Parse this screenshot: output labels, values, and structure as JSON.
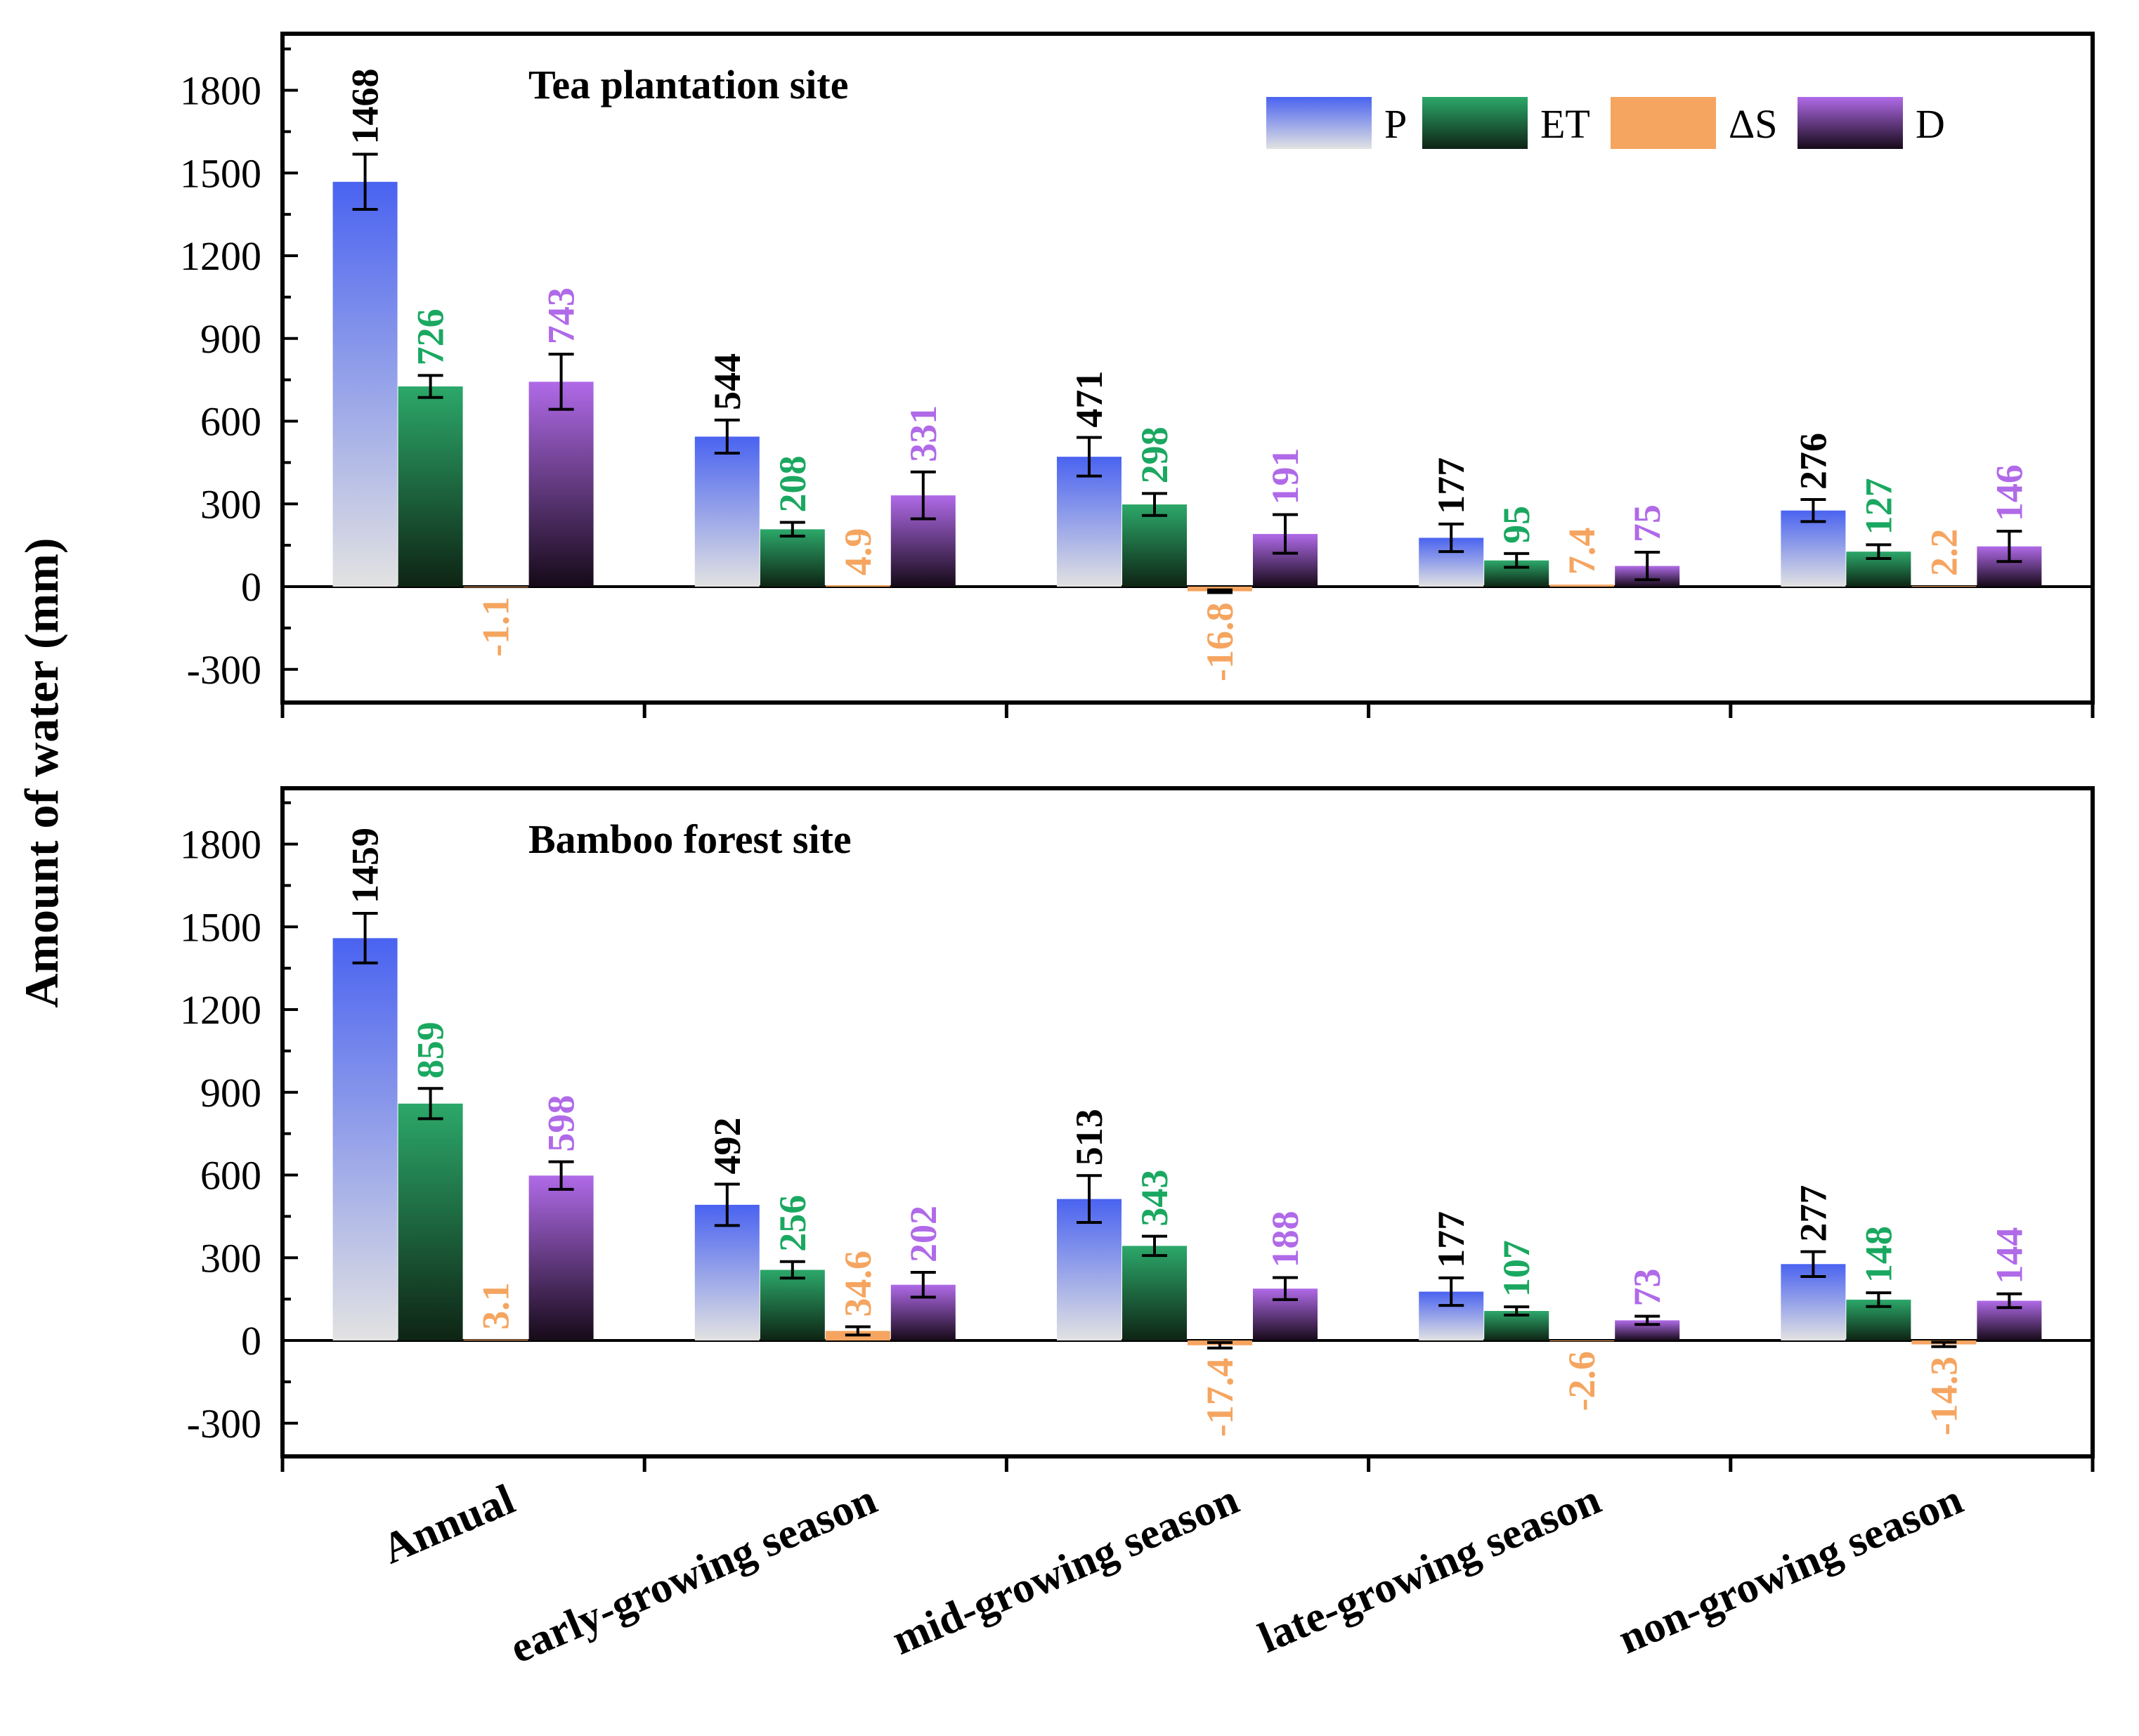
{
  "figure": {
    "ylabel": "Amount of water (mm)",
    "legend": {
      "placement": "top-right",
      "entries": [
        {
          "key": "P",
          "label": "P"
        },
        {
          "key": "ET",
          "label": "ET"
        },
        {
          "key": "dS",
          "label": "ΔS"
        },
        {
          "key": "D",
          "label": "D"
        }
      ]
    },
    "categories": [
      "Annual",
      "early-growing season",
      "mid-growing season",
      "late-growing season",
      "non-growing season"
    ],
    "colors": {
      "P_top": "#4a63f0",
      "P_bottom": "#e2e2e2",
      "ET_top": "#2ca86a",
      "ET_bottom": "#0e2414",
      "dS": "#f5a560",
      "D_top": "#b06ae8",
      "D_bottom": "#160a18",
      "label_P": "#000000",
      "label_ET": "#1aa860",
      "label_dS": "#f5a560",
      "label_D": "#b06ae8",
      "axis": "#000000"
    }
  },
  "chart_data": [
    {
      "type": "bar",
      "title": "Tea plantation site",
      "ylabel": "Amount of water (mm)",
      "ylim": [
        -420,
        2000
      ],
      "yticks": [
        -300,
        0,
        300,
        600,
        900,
        1200,
        1500,
        1800
      ],
      "ytick_labels": [
        "-300",
        "0",
        "300",
        "600",
        "900",
        "1200",
        "1500",
        "1800"
      ],
      "categories": [
        "Annual",
        "early-growing season",
        "mid-growing season",
        "late-growing season",
        "non-growing season"
      ],
      "series": [
        {
          "key": "P",
          "name": "P",
          "values": [
            1468,
            544,
            471,
            177,
            276
          ],
          "errors": [
            100,
            60,
            70,
            50,
            40
          ],
          "labels": [
            "1468",
            "544",
            "471",
            "177",
            "276"
          ]
        },
        {
          "key": "ET",
          "name": "ET",
          "values": [
            726,
            208,
            298,
            95,
            127
          ],
          "errors": [
            40,
            25,
            40,
            25,
            25
          ],
          "labels": [
            "726",
            "208",
            "298",
            "95",
            "127"
          ]
        },
        {
          "key": "dS",
          "name": "ΔS",
          "values": [
            -1.1,
            4.9,
            -16.8,
            7.4,
            2.2
          ],
          "errors": [
            0,
            0,
            5,
            0,
            0
          ],
          "labels": [
            "-1.1",
            "4.9",
            "-16.8",
            "7.4",
            "2.2"
          ]
        },
        {
          "key": "D",
          "name": "D",
          "values": [
            743,
            331,
            191,
            75,
            146
          ],
          "errors": [
            100,
            85,
            70,
            50,
            55
          ],
          "labels": [
            "743",
            "331",
            "191",
            "75",
            "146"
          ]
        }
      ]
    },
    {
      "type": "bar",
      "title": "Bamboo forest site",
      "ylabel": "Amount of water (mm)",
      "ylim": [
        -420,
        2000
      ],
      "yticks": [
        -300,
        0,
        300,
        600,
        900,
        1200,
        1500,
        1800
      ],
      "ytick_labels": [
        "-300",
        "0",
        "300",
        "600",
        "900",
        "1200",
        "1500",
        "1800"
      ],
      "categories": [
        "Annual",
        "early-growing season",
        "mid-growing season",
        "late-growing season",
        "non-growing season"
      ],
      "series": [
        {
          "key": "P",
          "name": "P",
          "values": [
            1459,
            492,
            513,
            177,
            277
          ],
          "errors": [
            90,
            75,
            85,
            50,
            45
          ],
          "labels": [
            "1459",
            "492",
            "513",
            "177",
            "277"
          ]
        },
        {
          "key": "ET",
          "name": "ET",
          "values": [
            859,
            256,
            343,
            107,
            148
          ],
          "errors": [
            55,
            30,
            35,
            15,
            25
          ],
          "labels": [
            "859",
            "256",
            "343",
            "107",
            "148"
          ]
        },
        {
          "key": "dS",
          "name": "ΔS",
          "values": [
            3.1,
            34.6,
            -17.4,
            -2.6,
            -14.3
          ],
          "errors": [
            0,
            15,
            10,
            0,
            8
          ],
          "labels": [
            "3.1",
            "34.6",
            "-17.4",
            "-2.6",
            "-14.3"
          ]
        },
        {
          "key": "D",
          "name": "D",
          "values": [
            598,
            202,
            188,
            73,
            144
          ],
          "errors": [
            50,
            45,
            40,
            15,
            25
          ],
          "labels": [
            "598",
            "202",
            "188",
            "73",
            "144"
          ]
        }
      ]
    }
  ]
}
